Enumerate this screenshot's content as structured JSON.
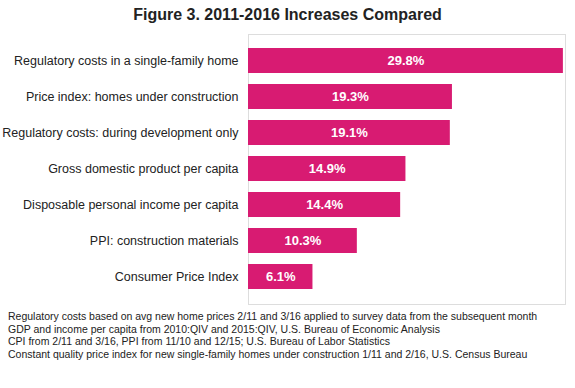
{
  "chart_data": {
    "type": "bar",
    "title": "Figure 3. 2011-2016 Increases Compared",
    "orientation": "horizontal",
    "categories": [
      "Regulatory costs in a single-family home",
      "Price index: homes under construction",
      "Regulatory costs: during development only",
      "Gross domestic product per capita",
      "Disposable personal income per capita",
      "PPI: construction materials",
      "Consumer Price Index"
    ],
    "values": [
      29.8,
      19.3,
      19.1,
      14.9,
      14.4,
      10.3,
      6.1
    ],
    "value_labels": [
      "29.8%",
      "19.3%",
      "19.1%",
      "14.9%",
      "14.4%",
      "10.3%",
      "6.1%"
    ],
    "data_labels": true,
    "tick_labels": "y",
    "color": "#d81b72",
    "xlim": [
      0,
      30
    ],
    "grid": false,
    "notes": [
      "Regulatory costs based on avg new home prices 2/11 and 3/16 applied to survey data from the subsequent month",
      "GDP and income per capita from 2010:QIV and 2015:QIV, U.S. Bureau of Economic Analysis",
      "CPI from 2/11 and 3/16, PPI from 11/10 and 12/15; U.S. Bureau of Labor Statistics",
      "Constant quality price index for new single-family homes under construction 1/11 and 2/16, U.S. Census Bureau"
    ]
  }
}
